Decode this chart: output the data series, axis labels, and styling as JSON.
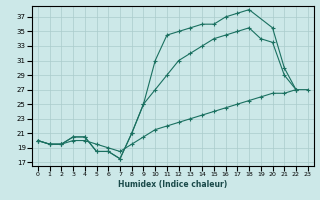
{
  "xlabel": "Humidex (Indice chaleur)",
  "background_color": "#cce8e8",
  "grid_color": "#aacccc",
  "line_color": "#1a7060",
  "yticks": [
    17,
    19,
    21,
    23,
    25,
    27,
    29,
    31,
    33,
    35,
    37
  ],
  "xticks": [
    0,
    1,
    2,
    3,
    4,
    5,
    6,
    7,
    8,
    9,
    10,
    11,
    12,
    13,
    14,
    15,
    16,
    17,
    18,
    19,
    20,
    21,
    22,
    23
  ],
  "ylim": [
    16.5,
    38.5
  ],
  "xlim": [
    -0.5,
    23.5
  ],
  "line_top_x": [
    0,
    1,
    2,
    3,
    4,
    5,
    6,
    7,
    8,
    9,
    10,
    11,
    12,
    13,
    14,
    15,
    16,
    17,
    18,
    20,
    21,
    22
  ],
  "line_top_y": [
    20,
    19.5,
    19.5,
    20.5,
    20.5,
    18.5,
    18.5,
    17.5,
    21,
    25,
    31,
    34.5,
    35,
    35.5,
    36,
    36,
    37,
    37.5,
    38,
    35.5,
    30,
    27
  ],
  "line_mid_x": [
    0,
    1,
    2,
    3,
    4,
    5,
    6,
    7,
    8,
    9,
    10,
    11,
    12,
    13,
    14,
    15,
    16,
    17,
    18,
    19,
    20,
    21,
    22
  ],
  "line_mid_y": [
    20,
    19.5,
    19.5,
    20.5,
    20.5,
    18.5,
    18.5,
    17.5,
    21,
    25,
    27,
    29,
    31,
    32,
    33,
    34,
    34.5,
    35,
    35.5,
    34,
    33.5,
    29,
    27
  ],
  "line_bot_x": [
    0,
    1,
    2,
    3,
    4,
    5,
    6,
    7,
    8,
    9,
    10,
    11,
    12,
    13,
    14,
    15,
    16,
    17,
    18,
    19,
    20,
    21,
    22,
    23
  ],
  "line_bot_y": [
    20,
    19.5,
    19.5,
    20,
    20,
    19.5,
    19,
    18.5,
    19.5,
    20.5,
    21.5,
    22,
    22.5,
    23,
    23.5,
    24,
    24.5,
    25,
    25.5,
    26,
    26.5,
    26.5,
    27,
    27
  ]
}
